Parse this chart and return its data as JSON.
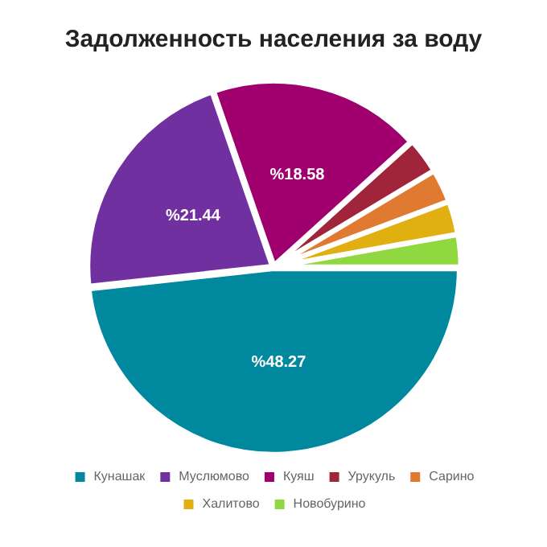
{
  "chart_data": {
    "type": "pie",
    "title": "Задолженность населения за воду",
    "categories": [
      "Кунашак",
      "Муслюмово",
      "Куяш",
      "Урукуль",
      "Сарино",
      "Халитово",
      "Новобурино"
    ],
    "values": [
      48.27,
      21.44,
      18.58,
      3.11,
      2.9,
      2.9,
      2.8
    ],
    "colors": [
      "#00889e",
      "#7030a0",
      "#a0006e",
      "#a0243a",
      "#e07a30",
      "#e0b010",
      "#90d840"
    ],
    "value_labels": [
      "%48.27",
      "%21.44",
      "%18.58",
      null,
      null,
      null,
      null
    ],
    "legend": "bottom"
  }
}
